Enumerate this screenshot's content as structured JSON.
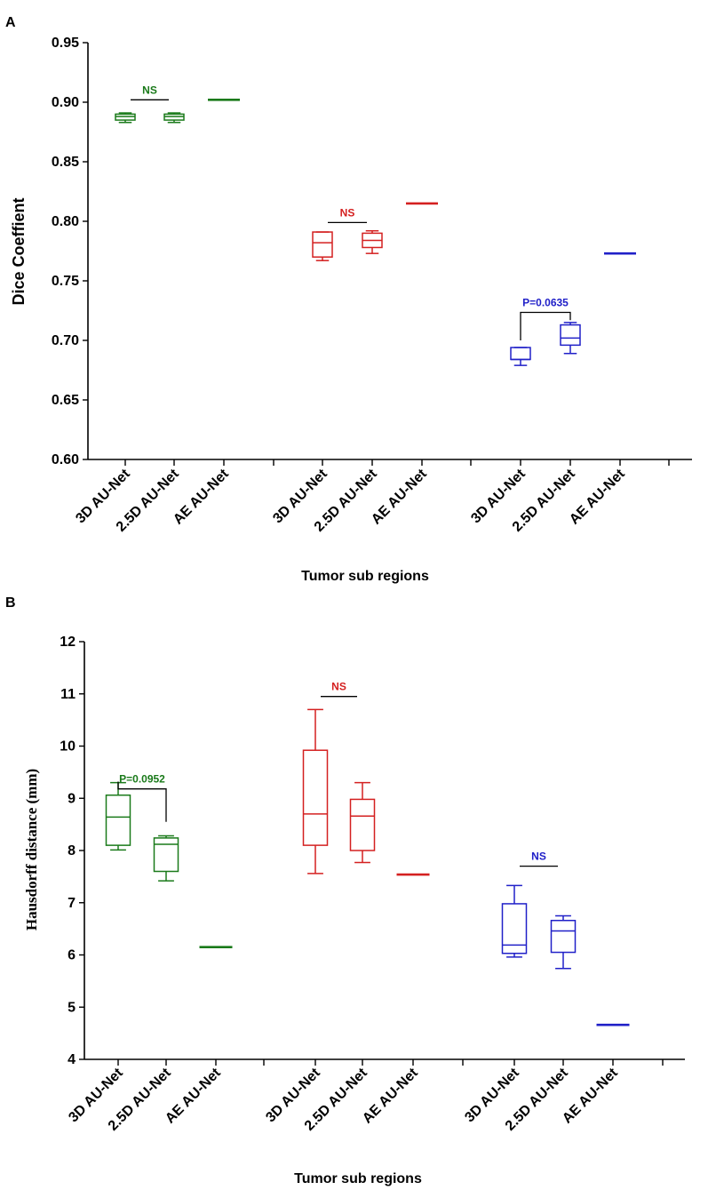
{
  "colors": {
    "green": "#1a7a1a",
    "red": "#d42020",
    "blue": "#2020c8"
  },
  "chart_data": [
    {
      "type": "box",
      "panel": "A",
      "title": "",
      "xlabel": "Tumor sub regions",
      "ylabel": "Dice Coeffient",
      "ylim": [
        0.6,
        0.95
      ],
      "yticks": [
        "0.60",
        "0.65",
        "0.70",
        "0.75",
        "0.80",
        "0.85",
        "0.90",
        "0.95"
      ],
      "categories": [
        "3D AU-Net",
        "2.5D AU-Net",
        "AE AU-Net",
        "3D AU-Net",
        "2.5D AU-Net",
        "AE AU-Net",
        "3D AU-Net",
        "2.5D AU-Net",
        "AE AU-Net"
      ],
      "groups": [
        {
          "color": "green",
          "boxes": [
            {
              "category": "3D AU-Net",
              "min": 0.883,
              "q1": 0.885,
              "median": 0.888,
              "q3": 0.89,
              "max": 0.891
            },
            {
              "category": "2.5D AU-Net",
              "min": 0.883,
              "q1": 0.885,
              "median": 0.888,
              "q3": 0.89,
              "max": 0.891
            },
            {
              "category": "AE AU-Net",
              "single": 0.902
            }
          ]
        },
        {
          "color": "red",
          "boxes": [
            {
              "category": "3D AU-Net",
              "min": 0.767,
              "q1": 0.77,
              "median": 0.782,
              "q3": 0.791,
              "max": 0.791
            },
            {
              "category": "2.5D AU-Net",
              "min": 0.773,
              "q1": 0.778,
              "median": 0.784,
              "q3": 0.79,
              "max": 0.792
            },
            {
              "category": "AE AU-Net",
              "single": 0.815
            }
          ]
        },
        {
          "color": "blue",
          "boxes": [
            {
              "category": "3D AU-Net",
              "min": 0.679,
              "q1": 0.684,
              "median": 0.684,
              "q3": 0.694,
              "max": 0.694
            },
            {
              "category": "2.5D AU-Net",
              "min": 0.689,
              "q1": 0.696,
              "median": 0.702,
              "q3": 0.713,
              "max": 0.715
            },
            {
              "category": "AE AU-Net",
              "single": 0.773
            }
          ]
        }
      ],
      "annotations": [
        {
          "text": "NS",
          "color": "green",
          "group": 0,
          "style": "line",
          "y": 0.902
        },
        {
          "text": "NS",
          "color": "red",
          "group": 1,
          "style": "line",
          "y": 0.799
        },
        {
          "text": "P=0.0635",
          "color": "blue",
          "group": 2,
          "style": "bracket",
          "y": 0.7235,
          "y1": 0.7,
          "y2": 0.717
        }
      ]
    },
    {
      "type": "box",
      "panel": "B",
      "title": "",
      "xlabel": "Tumor sub regions",
      "ylabel": "Hausdorff distance (mm)",
      "ylim": [
        4,
        12
      ],
      "yticks": [
        "4",
        "5",
        "6",
        "7",
        "8",
        "9",
        "10",
        "11",
        "12"
      ],
      "categories": [
        "3D AU-Net",
        "2.5D AU-Net",
        "AE AU-Net",
        "3D AU-Net",
        "2.5D AU-Net",
        "AE AU-Net",
        "3D AU-Net",
        "2.5D AU-Net",
        "AE AU-Net"
      ],
      "groups": [
        {
          "color": "green",
          "boxes": [
            {
              "category": "3D AU-Net",
              "min": 8.01,
              "q1": 8.1,
              "median": 8.64,
              "q3": 9.06,
              "max": 9.3
            },
            {
              "category": "2.5D AU-Net",
              "min": 7.42,
              "q1": 7.6,
              "median": 8.12,
              "q3": 8.24,
              "max": 8.28
            },
            {
              "category": "AE AU-Net",
              "single": 6.15
            }
          ]
        },
        {
          "color": "red",
          "boxes": [
            {
              "category": "3D AU-Net",
              "min": 7.56,
              "q1": 8.1,
              "median": 8.7,
              "q3": 9.92,
              "max": 10.7
            },
            {
              "category": "2.5D AU-Net",
              "min": 7.77,
              "q1": 8.0,
              "median": 8.66,
              "q3": 8.98,
              "max": 9.3
            },
            {
              "category": "AE AU-Net",
              "single": 7.54
            }
          ]
        },
        {
          "color": "blue",
          "boxes": [
            {
              "category": "3D AU-Net",
              "min": 5.96,
              "q1": 6.03,
              "median": 6.19,
              "q3": 6.98,
              "max": 7.33
            },
            {
              "category": "2.5D AU-Net",
              "min": 5.74,
              "q1": 6.05,
              "median": 6.46,
              "q3": 6.66,
              "max": 6.75
            },
            {
              "category": "AE AU-Net",
              "single": 4.66
            }
          ]
        }
      ],
      "annotations": [
        {
          "text": "P=0.0952",
          "color": "green",
          "group": 0,
          "style": "bracket",
          "y": 9.18,
          "y1": 9.32,
          "y2": 8.55
        },
        {
          "text": "NS",
          "color": "red",
          "group": 1,
          "style": "line",
          "y": 10.95
        },
        {
          "text": "NS",
          "color": "blue",
          "group": 2,
          "style": "line",
          "y": 7.7
        }
      ]
    }
  ]
}
